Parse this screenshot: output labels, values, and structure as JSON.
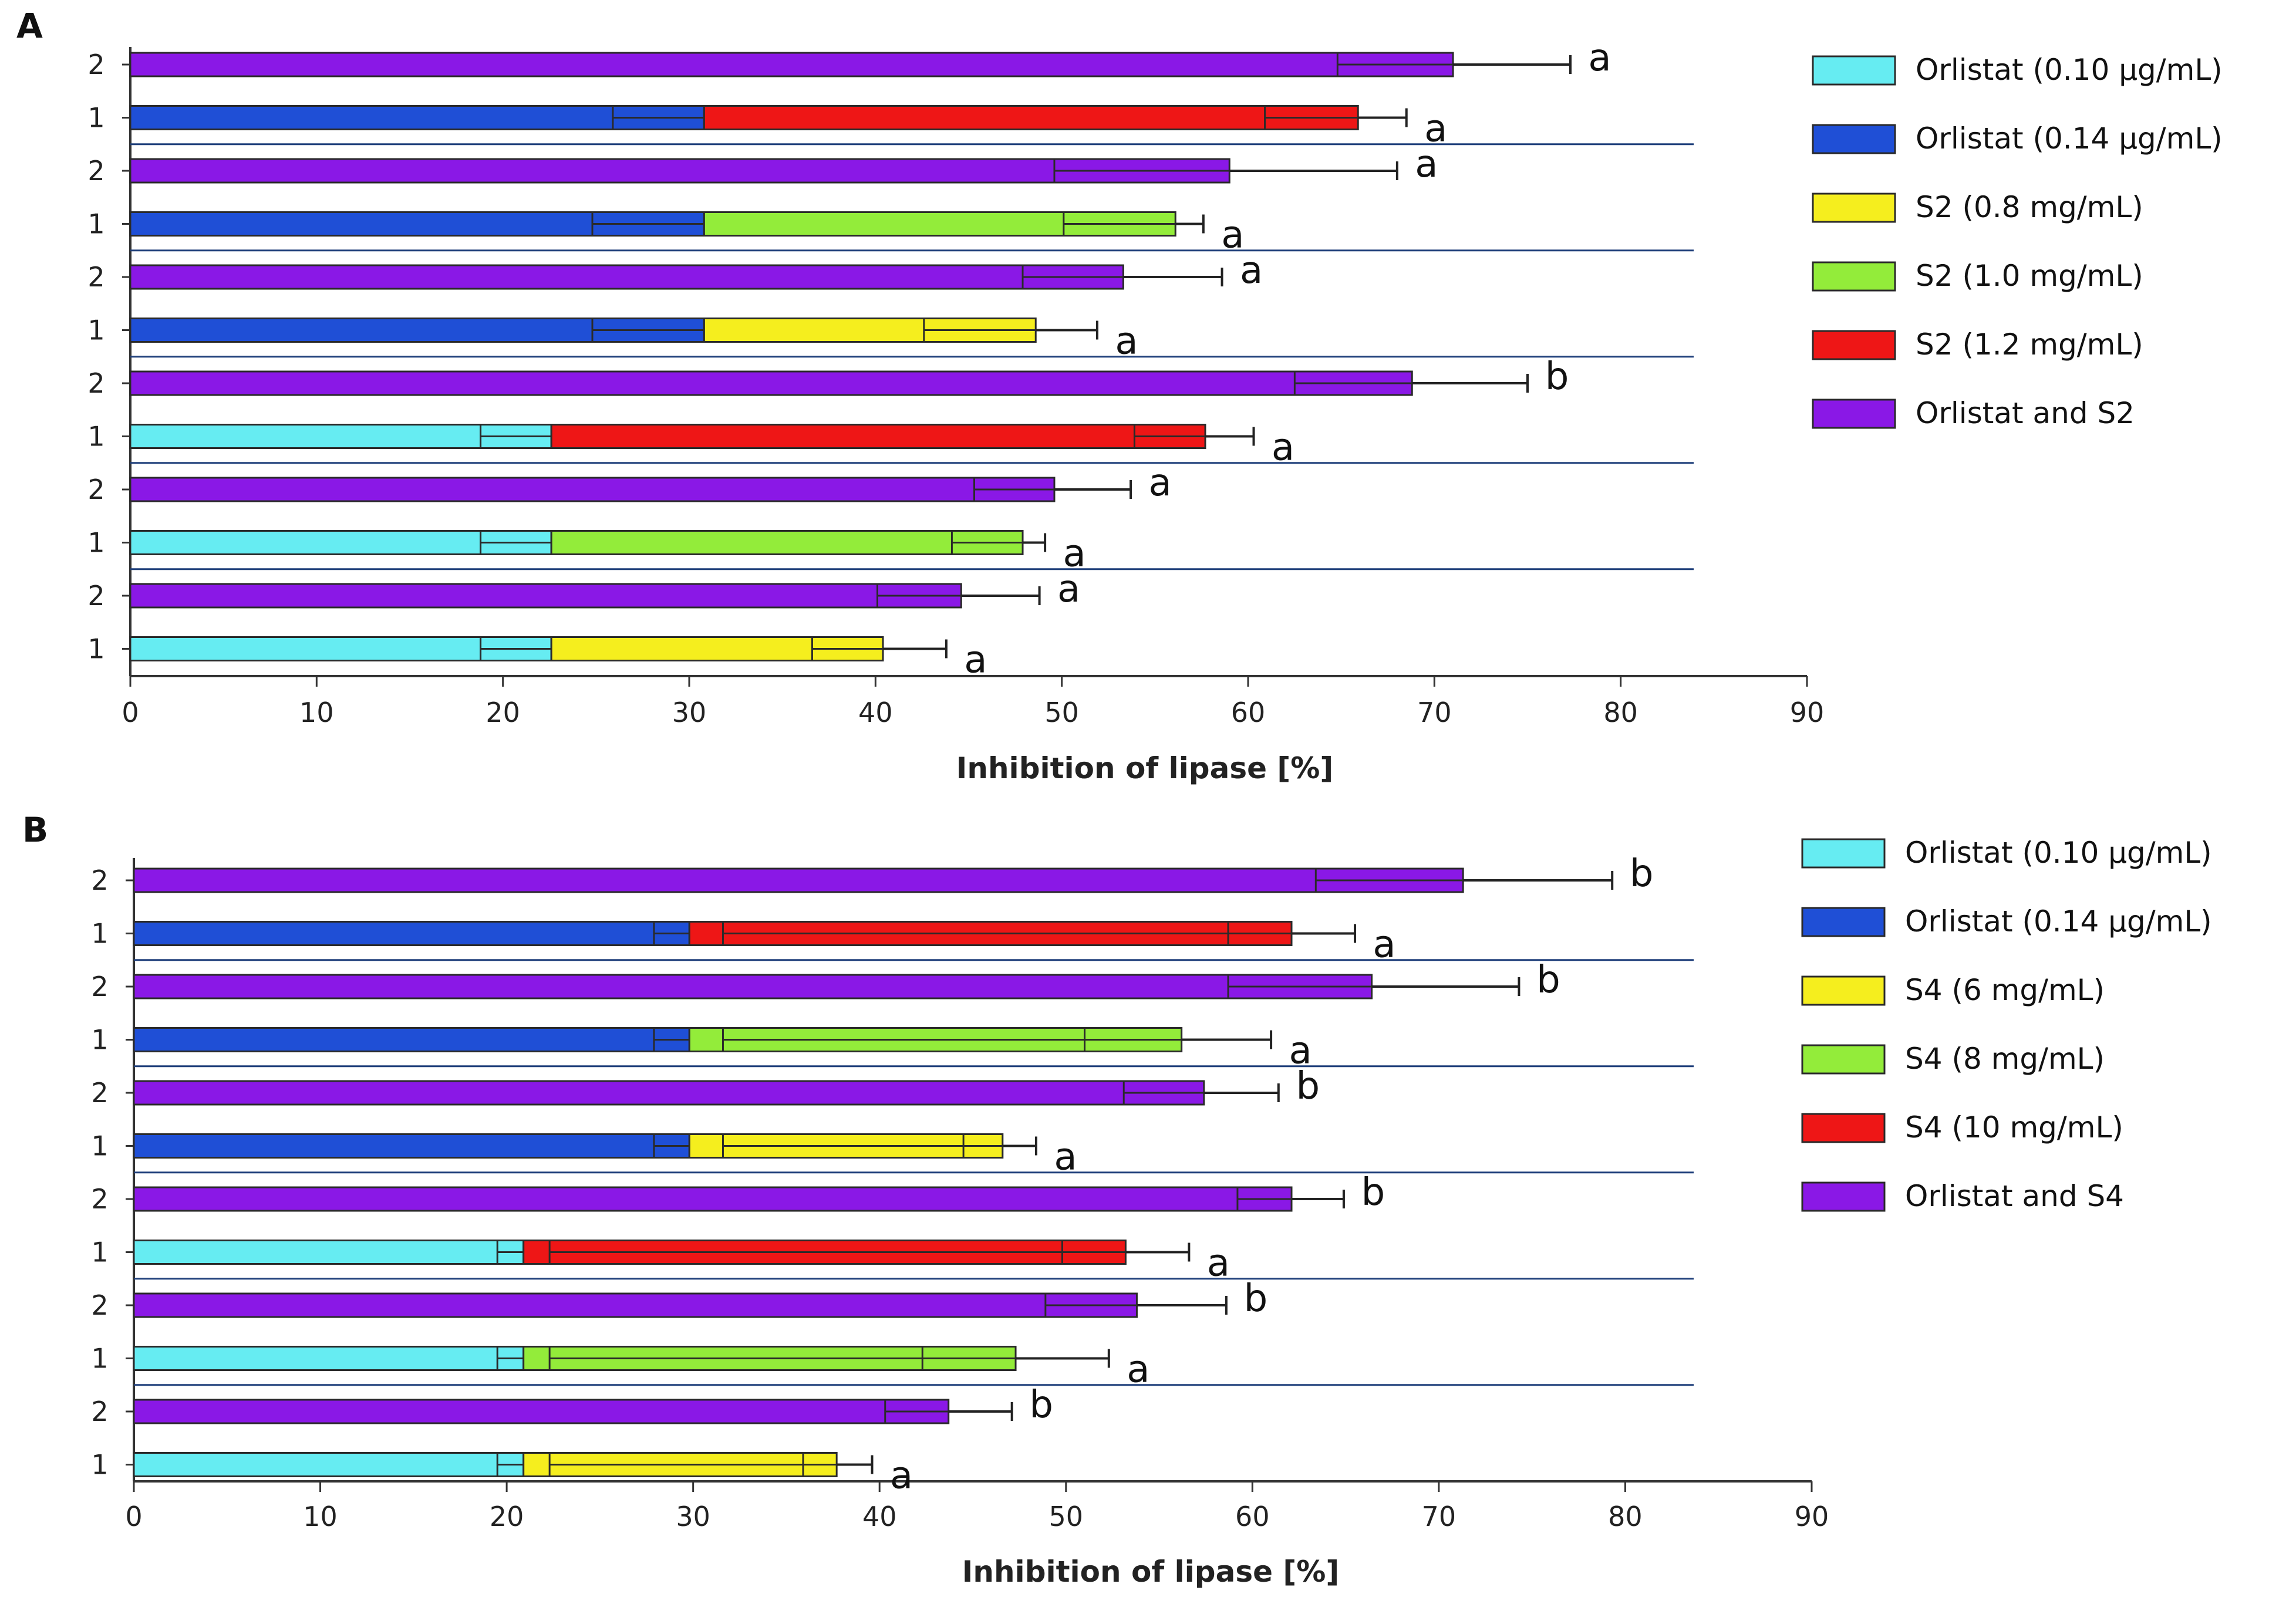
{
  "chart_data": [
    {
      "type": "bar",
      "panel_label": "A",
      "xlabel": "Inhibition of lipase [%]",
      "xlim": [
        0,
        90
      ],
      "xticks": [
        "0",
        "10",
        "20",
        "30",
        "40",
        "50",
        "60",
        "70",
        "80",
        "90"
      ],
      "legend": [
        {
          "label": "Orlistat (0.10 µg/mL)",
          "color": "#66ECF2"
        },
        {
          "label": "Orlistat (0.14 µg/mL)",
          "color": "#1F4FD6"
        },
        {
          "label": "S2 (0.8 mg/mL)",
          "color": "#F5EE1E"
        },
        {
          "label": "S2 (1.0 mg/mL)",
          "color": "#93EC3A"
        },
        {
          "label": "S2 (1.2 mg/mL)",
          "color": "#EE1616"
        },
        {
          "label": "Orlistat and S2",
          "color": "#8A18E6"
        }
      ],
      "rows": [
        {
          "label": "2",
          "segments": [
            {
              "series": 5,
              "value": 71.0,
              "inner": 64.8
            }
          ],
          "error": 6.3,
          "sig": "a"
        },
        {
          "label": "1",
          "segments": [
            {
              "series": 1,
              "value": 30.8,
              "inner": 25.9
            },
            {
              "series": 4,
              "value": 35.1,
              "inner": 5.0,
              "inner_end": true
            }
          ],
          "error": 2.6,
          "sig": "a"
        },
        {
          "label": "2",
          "segments": [
            {
              "series": 5,
              "value": 59.0,
              "inner": 49.6
            }
          ],
          "error": 9.0,
          "sig": "a"
        },
        {
          "label": "1",
          "segments": [
            {
              "series": 1,
              "value": 30.8,
              "inner": 24.8
            },
            {
              "series": 3,
              "value": 25.3,
              "inner": 6.0,
              "inner_end": true
            }
          ],
          "error": 1.5,
          "sig": "a"
        },
        {
          "label": "2",
          "segments": [
            {
              "series": 5,
              "value": 53.3,
              "inner": 47.9
            }
          ],
          "error": 5.3,
          "sig": "a"
        },
        {
          "label": "1",
          "segments": [
            {
              "series": 1,
              "value": 30.8,
              "inner": 24.8
            },
            {
              "series": 2,
              "value": 17.8,
              "inner": 6.0,
              "inner_end": true
            }
          ],
          "error": 3.3,
          "sig": "a"
        },
        {
          "label": "2",
          "segments": [
            {
              "series": 5,
              "value": 68.8,
              "inner": 62.5
            }
          ],
          "error": 6.2,
          "sig": "b"
        },
        {
          "label": "1",
          "segments": [
            {
              "series": 0,
              "value": 22.6,
              "inner": 18.8
            },
            {
              "series": 4,
              "value": 35.1,
              "inner": 3.8,
              "inner_end": true
            }
          ],
          "error": 2.6,
          "sig": "a"
        },
        {
          "label": "2",
          "segments": [
            {
              "series": 5,
              "value": 49.6,
              "inner": 45.3
            }
          ],
          "error": 4.1,
          "sig": "a"
        },
        {
          "label": "1",
          "segments": [
            {
              "series": 0,
              "value": 22.6,
              "inner": 18.8
            },
            {
              "series": 3,
              "value": 25.3,
              "inner": 3.8,
              "inner_end": true
            }
          ],
          "error": 1.2,
          "sig": "a"
        },
        {
          "label": "2",
          "segments": [
            {
              "series": 5,
              "value": 44.6,
              "inner": 40.1
            }
          ],
          "error": 4.2,
          "sig": "a"
        },
        {
          "label": "1",
          "segments": [
            {
              "series": 0,
              "value": 22.6,
              "inner": 18.8
            },
            {
              "series": 2,
              "value": 17.8,
              "inner": 3.8,
              "inner_end": true
            }
          ],
          "error": 3.4,
          "sig": "a"
        }
      ]
    },
    {
      "type": "bar",
      "panel_label": "B",
      "xlabel": "Inhibition of lipase [%]",
      "xlim": [
        0,
        90
      ],
      "xticks": [
        "0",
        "10",
        "20",
        "30",
        "40",
        "50",
        "60",
        "70",
        "80",
        "90"
      ],
      "legend": [
        {
          "label": "Orlistat (0.10 µg/mL)",
          "color": "#66ECF2"
        },
        {
          "label": "Orlistat (0.14 µg/mL)",
          "color": "#1F4FD6"
        },
        {
          "label": "S4 (6 mg/mL)",
          "color": "#F5EE1E"
        },
        {
          "label": "S4 (8 mg/mL)",
          "color": "#93EC3A"
        },
        {
          "label": "S4 (10 mg/mL)",
          "color": "#EE1616"
        },
        {
          "label": "Orlistat and S4",
          "color": "#8A18E6"
        }
      ],
      "rows": [
        {
          "label": "2",
          "segments": [
            {
              "series": 5,
              "value": 71.3,
              "inner": 63.4
            }
          ],
          "error": 8.0,
          "sig": "b"
        },
        {
          "label": "1",
          "segments": [
            {
              "series": 1,
              "value": 29.8,
              "inner": 27.9
            },
            {
              "series": 4,
              "value": 32.3,
              "inner": 1.8
            },
            {
              "series": 4,
              "value": 0.0
            }
          ],
          "error": 3.4,
          "sig": "a",
          "inner_extra": 58.7
        },
        {
          "label": "2",
          "segments": [
            {
              "series": 5,
              "value": 66.4,
              "inner": 58.7
            }
          ],
          "error": 7.9,
          "sig": "b"
        },
        {
          "label": "1",
          "segments": [
            {
              "series": 1,
              "value": 29.8,
              "inner": 27.9
            },
            {
              "series": 3,
              "value": 26.4,
              "inner": 1.8
            }
          ],
          "error": 4.8,
          "sig": "a",
          "inner_extra": 51.0
        },
        {
          "label": "2",
          "segments": [
            {
              "series": 5,
              "value": 57.4,
              "inner": 53.1
            }
          ],
          "error": 4.0,
          "sig": "b"
        },
        {
          "label": "1",
          "segments": [
            {
              "series": 1,
              "value": 29.8,
              "inner": 27.9
            },
            {
              "series": 2,
              "value": 16.8,
              "inner": 1.8
            }
          ],
          "error": 1.8,
          "sig": "a",
          "inner_extra": 44.5
        },
        {
          "label": "2",
          "segments": [
            {
              "series": 5,
              "value": 62.1,
              "inner": 59.2
            }
          ],
          "error": 2.8,
          "sig": "b"
        },
        {
          "label": "1",
          "segments": [
            {
              "series": 0,
              "value": 20.9,
              "inner": 19.5
            },
            {
              "series": 4,
              "value": 32.3,
              "inner": 1.4
            }
          ],
          "error": 3.4,
          "sig": "a",
          "inner_extra": 49.8
        },
        {
          "label": "2",
          "segments": [
            {
              "series": 5,
              "value": 53.8,
              "inner": 48.9
            }
          ],
          "error": 4.8,
          "sig": "b"
        },
        {
          "label": "1",
          "segments": [
            {
              "series": 0,
              "value": 20.9,
              "inner": 19.5
            },
            {
              "series": 3,
              "value": 26.4,
              "inner": 1.4
            }
          ],
          "error": 5.0,
          "sig": "a",
          "inner_extra": 42.3
        },
        {
          "label": "2",
          "segments": [
            {
              "series": 5,
              "value": 43.7,
              "inner": 40.3
            }
          ],
          "error": 3.4,
          "sig": "b"
        },
        {
          "label": "1",
          "segments": [
            {
              "series": 0,
              "value": 20.9,
              "inner": 19.5
            },
            {
              "series": 2,
              "value": 16.8,
              "inner": 1.4
            }
          ],
          "error": 1.9,
          "sig": "a",
          "inner_extra": 35.9
        }
      ]
    }
  ]
}
